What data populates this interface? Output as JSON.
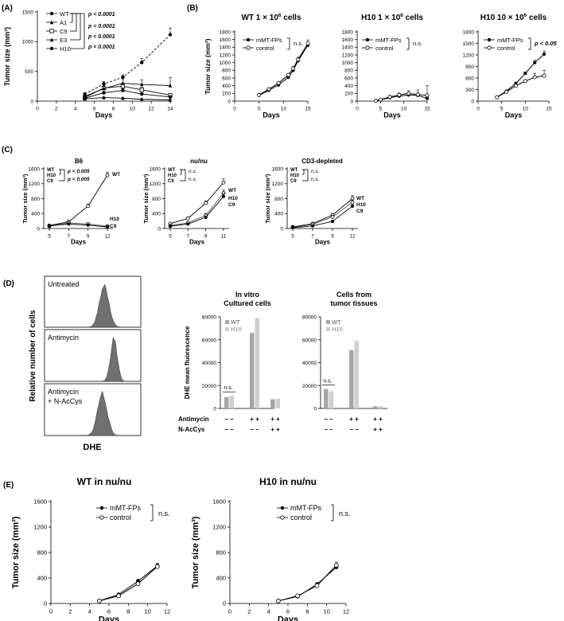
{
  "panel_labels": {
    "A": "(A)",
    "B": "(B)",
    "C": "(C)",
    "D": "(D)",
    "E": "(E)"
  },
  "colors": {
    "black": "#000000",
    "gray": "#555555",
    "dark_bar": "#a6a6a6",
    "light_bar": "#cfcfcf",
    "histogram": "#707070"
  },
  "chart_data": [
    {
      "id": "A",
      "type": "line",
      "title": "",
      "xlabel": "Days",
      "ylabel": "Tumor size (mm³)",
      "xlim": [
        0,
        14
      ],
      "ylim": [
        0,
        1500
      ],
      "xticks": [
        "0",
        "2",
        "4",
        "6",
        "8",
        "10",
        "12",
        "14"
      ],
      "yticks": [
        "0",
        "500",
        "1000",
        "1500"
      ],
      "series": [
        {
          "name": "WT",
          "marker": "filled-circle",
          "dash": true,
          "x": [
            5,
            7,
            9,
            11,
            14
          ],
          "y": [
            120,
            290,
            400,
            650,
            1120
          ],
          "err": [
            20,
            40,
            40,
            70,
            110
          ]
        },
        {
          "name": "A1",
          "marker": "filled-triangle",
          "x": [
            5,
            7,
            9,
            11,
            14
          ],
          "y": [
            40,
            60,
            50,
            30,
            20
          ],
          "err": [
            10,
            10,
            10,
            10,
            10
          ]
        },
        {
          "name": "C9",
          "marker": "open-square",
          "x": [
            5,
            7,
            9,
            11,
            14
          ],
          "y": [
            60,
            220,
            250,
            190,
            100
          ],
          "err": [
            15,
            40,
            50,
            40,
            30
          ]
        },
        {
          "name": "E3",
          "marker": "filled-triangle",
          "x": [
            5,
            7,
            9,
            11,
            14
          ],
          "y": [
            80,
            210,
            300,
            280,
            260
          ],
          "err": [
            20,
            40,
            60,
            80,
            140
          ]
        },
        {
          "name": "H10",
          "marker": "filled-circle",
          "x": [
            5,
            7,
            9,
            11,
            14
          ],
          "y": [
            50,
            140,
            180,
            120,
            70
          ],
          "err": [
            10,
            20,
            30,
            20,
            20
          ]
        }
      ],
      "sig_labels": [
        "p < 0.0001",
        "p < 0.0001",
        "p < 0.0001",
        "p < 0.0001"
      ]
    },
    {
      "id": "B1",
      "type": "line",
      "title": "WT 1 × 10",
      "title_sup": "6",
      "title_suffix": " cells",
      "xlabel": "Days",
      "ylabel": "Tumor size (mm³)",
      "xlim": [
        0,
        15
      ],
      "ylim": [
        0,
        1800
      ],
      "xticks": [
        "0",
        "5",
        "10",
        "15"
      ],
      "yticks": [
        "0",
        "200",
        "400",
        "600",
        "800",
        "1000",
        "1200",
        "1400",
        "1600",
        "1800"
      ],
      "series": [
        {
          "name": "mMT-FPs",
          "marker": "filled-circle",
          "x": [
            5,
            7,
            9,
            11,
            12,
            13,
            15
          ],
          "y": [
            150,
            280,
            420,
            620,
            800,
            1050,
            1450
          ],
          "err": [
            10,
            20,
            30,
            40,
            50,
            60,
            80
          ]
        },
        {
          "name": "control",
          "marker": "open-circle",
          "x": [
            5,
            7,
            9,
            11,
            12,
            13,
            15
          ],
          "y": [
            160,
            310,
            470,
            680,
            850,
            1080,
            1500
          ],
          "err": [
            10,
            20,
            30,
            40,
            50,
            60,
            90
          ]
        }
      ],
      "sig_label": "n.s."
    },
    {
      "id": "B2",
      "type": "line",
      "title": "H10 1 × 10",
      "title_sup": "6",
      "title_suffix": " cells",
      "xlabel": "Days",
      "ylabel": "",
      "xlim": [
        0,
        15
      ],
      "ylim": [
        0,
        1800
      ],
      "xticks": [
        "0",
        "5",
        "10",
        "15"
      ],
      "yticks": [
        "0",
        "200",
        "400",
        "600",
        "800",
        "1000",
        "1200",
        "1400",
        "1600",
        "1800"
      ],
      "series": [
        {
          "name": "mMT-FPs",
          "marker": "filled-circle",
          "x": [
            4,
            5,
            7,
            9,
            11,
            13,
            15
          ],
          "y": [
            10,
            30,
            90,
            130,
            160,
            150,
            70
          ],
          "err": [
            5,
            10,
            20,
            30,
            40,
            60,
            40
          ]
        },
        {
          "name": "control",
          "marker": "open-circle",
          "x": [
            4,
            5,
            7,
            9,
            11,
            13,
            15
          ],
          "y": [
            10,
            40,
            110,
            160,
            200,
            170,
            150
          ],
          "err": [
            5,
            10,
            30,
            50,
            70,
            120,
            250
          ]
        }
      ],
      "sig_label": "n.s."
    },
    {
      "id": "B3",
      "type": "line",
      "title": "H10 10 × 10",
      "title_sup": "6",
      "title_suffix": " cells",
      "xlabel": "Days",
      "ylabel": "",
      "xlim": [
        0,
        15
      ],
      "ylim": [
        0,
        1800
      ],
      "xticks": [
        "0",
        "5",
        "10",
        "15"
      ],
      "yticks": [
        "0",
        "300",
        "600",
        "900",
        "1200",
        "1500",
        "1800"
      ],
      "series": [
        {
          "name": "mMT-FPs",
          "marker": "filled-circle",
          "x": [
            4,
            6,
            8,
            10,
            12,
            14
          ],
          "y": [
            100,
            260,
            460,
            720,
            1000,
            1220
          ],
          "err": [
            10,
            20,
            30,
            40,
            60,
            80
          ]
        },
        {
          "name": "control",
          "marker": "open-circle",
          "x": [
            4,
            6,
            8,
            10,
            12,
            14
          ],
          "y": [
            100,
            240,
            400,
            520,
            620,
            660
          ],
          "err": [
            10,
            20,
            30,
            40,
            100,
            140
          ]
        }
      ],
      "sig_label": "p < 0.05"
    },
    {
      "id": "C1",
      "type": "line",
      "title": "B6",
      "xlabel": "Days",
      "ylabel": "Tumor size (mm³)",
      "categories": [
        "5",
        "7",
        "9",
        "12"
      ],
      "ylim": [
        0,
        1600
      ],
      "yticks": [
        "0",
        "400",
        "800",
        "1200",
        "1600"
      ],
      "series": [
        {
          "name": "WT",
          "marker": "open-circle",
          "y": [
            80,
            180,
            600,
            1430
          ],
          "err": [
            10,
            30,
            60,
            80
          ]
        },
        {
          "name": "H10",
          "marker": "open-circle",
          "y": [
            60,
            150,
            120,
            60
          ],
          "err": [
            10,
            20,
            20,
            10
          ]
        },
        {
          "name": "C9",
          "marker": "filled-circle",
          "y": [
            70,
            120,
            90,
            40
          ],
          "err": [
            10,
            20,
            20,
            10
          ]
        }
      ],
      "legend_left": [
        "WT",
        "H10",
        "C9"
      ],
      "sig_labels": [
        "p < 0.005",
        "p < 0.005"
      ],
      "end_labels": [
        "WT",
        "H10",
        "C9"
      ]
    },
    {
      "id": "C2",
      "type": "line",
      "title": "nu/nu",
      "xlabel": "Days",
      "ylabel": "Tumor size (mm³)",
      "categories": [
        "5",
        "7",
        "9",
        "11"
      ],
      "ylim": [
        0,
        1600
      ],
      "yticks": [
        "0",
        "400",
        "800",
        "1200",
        "1600"
      ],
      "series": [
        {
          "name": "WT",
          "marker": "open-circle",
          "y": [
            130,
            270,
            680,
            1230
          ],
          "err": [
            20,
            40,
            60,
            100
          ]
        },
        {
          "name": "H10",
          "marker": "open-circle",
          "y": [
            80,
            150,
            350,
            950
          ],
          "err": [
            10,
            30,
            50,
            80
          ]
        },
        {
          "name": "C9",
          "marker": "filled-circle",
          "y": [
            60,
            120,
            300,
            860
          ],
          "err": [
            10,
            20,
            40,
            80
          ]
        }
      ],
      "legend_left": [
        "WT",
        "H10",
        "C9"
      ],
      "sig_labels": [
        "n.s.",
        "n.s."
      ],
      "end_labels": [
        "WT",
        "H10",
        "C9"
      ]
    },
    {
      "id": "C3",
      "type": "line",
      "title": "CD3-depleted",
      "xlabel": "Days",
      "ylabel": "Tumor size (mm³)",
      "categories": [
        "5",
        "7",
        "9",
        "12"
      ],
      "ylim": [
        0,
        1600
      ],
      "yticks": [
        "0",
        "400",
        "800",
        "1200",
        "1600"
      ],
      "series": [
        {
          "name": "WT",
          "marker": "open-circle",
          "y": [
            40,
            130,
            360,
            800
          ],
          "err": [
            10,
            20,
            40,
            80
          ]
        },
        {
          "name": "H10",
          "marker": "open-circle",
          "y": [
            30,
            110,
            310,
            700
          ],
          "err": [
            10,
            20,
            40,
            70
          ]
        },
        {
          "name": "C9",
          "marker": "filled-circle",
          "y": [
            20,
            70,
            190,
            600
          ],
          "err": [
            5,
            10,
            30,
            60
          ]
        }
      ],
      "legend_left": [
        "WT",
        "H10",
        "C9"
      ],
      "sig_labels": [
        "n.s.",
        "n.s."
      ],
      "end_labels": [
        "WT",
        "H10",
        "C9"
      ]
    },
    {
      "id": "D-hist",
      "type": "histogram",
      "xlabel": "DHE",
      "ylabel": "Relative number of cells",
      "panels": [
        {
          "label": "Untreated",
          "peak": 0.62,
          "width": 0.07
        },
        {
          "label": "Antimycin",
          "peak": 0.72,
          "width": 0.05
        },
        {
          "label_lines": [
            "Antimycin",
            "+ N-AcCys"
          ],
          "peak": 0.6,
          "width": 0.07
        }
      ]
    },
    {
      "id": "D1",
      "type": "bar",
      "title_lines": [
        "In vitro",
        "Cultured cells"
      ],
      "ylabel": "DHE mean fluorescence",
      "ylim": [
        0,
        80000
      ],
      "yticks": [
        "0",
        "20000",
        "40000",
        "60000",
        "80000"
      ],
      "legend": [
        "WT",
        "H10"
      ],
      "groups": [
        {
          "WT": 10000,
          "H10": 11000
        },
        {
          "WT": 66000,
          "H10": 79000
        },
        {
          "WT": 8000,
          "H10": 8500
        }
      ],
      "sig_label": "n.s."
    },
    {
      "id": "D2",
      "type": "bar",
      "title_lines": [
        "Cells from",
        "tumor tissues"
      ],
      "ylabel": "",
      "ylim": [
        0,
        80000
      ],
      "yticks": [
        "0",
        "20000",
        "40000",
        "60000",
        "80000"
      ],
      "legend": [
        "WT",
        "H10"
      ],
      "groups": [
        {
          "WT": 17000,
          "H10": 15000
        },
        {
          "WT": 51000,
          "H10": 59000
        },
        {
          "WT": 2000,
          "H10": 2000
        }
      ],
      "sig_label": "n.s."
    },
    {
      "id": "E1",
      "type": "line",
      "title": "WT in nu/nu",
      "xlabel": "Days",
      "ylabel": "Tumor size (mm³)",
      "xlim": [
        0,
        12
      ],
      "ylim": [
        0,
        1600
      ],
      "xticks": [
        "0",
        "2",
        "4",
        "6",
        "8",
        "10",
        "12"
      ],
      "yticks": [
        "0",
        "400",
        "800",
        "1200",
        "1600"
      ],
      "series": [
        {
          "name": "mMT-FPs",
          "marker": "filled-circle",
          "x": [
            5,
            7,
            9,
            11
          ],
          "y": [
            40,
            140,
            350,
            590
          ],
          "err": [
            5,
            15,
            30,
            40
          ]
        },
        {
          "name": "control",
          "marker": "open-circle",
          "x": [
            5,
            7,
            9,
            11
          ],
          "y": [
            40,
            120,
            310,
            580
          ],
          "err": [
            5,
            15,
            30,
            40
          ]
        }
      ],
      "sig_label": "n.s."
    },
    {
      "id": "E2",
      "type": "line",
      "title": "H10 in nu/nu",
      "xlabel": "Days",
      "ylabel": "Tumor size (mm³)",
      "xlim": [
        0,
        12
      ],
      "ylim": [
        0,
        1600
      ],
      "xticks": [
        "0",
        "2",
        "4",
        "6",
        "8",
        "10",
        "12"
      ],
      "yticks": [
        "0",
        "400",
        "800",
        "1200",
        "1600"
      ],
      "series": [
        {
          "name": "mMT-FPs",
          "marker": "filled-circle",
          "x": [
            5,
            7,
            9,
            11
          ],
          "y": [
            40,
            110,
            300,
            570
          ],
          "err": [
            5,
            15,
            30,
            40
          ]
        },
        {
          "name": "control",
          "marker": "open-circle",
          "x": [
            5,
            7,
            9,
            11
          ],
          "y": [
            40,
            120,
            280,
            600
          ],
          "err": [
            5,
            15,
            30,
            50
          ]
        }
      ],
      "sig_label": "n.s."
    }
  ],
  "treatments": {
    "rows": [
      {
        "label": "Antimycin",
        "signs": [
          "– –",
          "+ +",
          "+ +"
        ]
      },
      {
        "label": "N-AcCys",
        "signs": [
          "– –",
          "– –",
          "+ +"
        ]
      }
    ]
  }
}
